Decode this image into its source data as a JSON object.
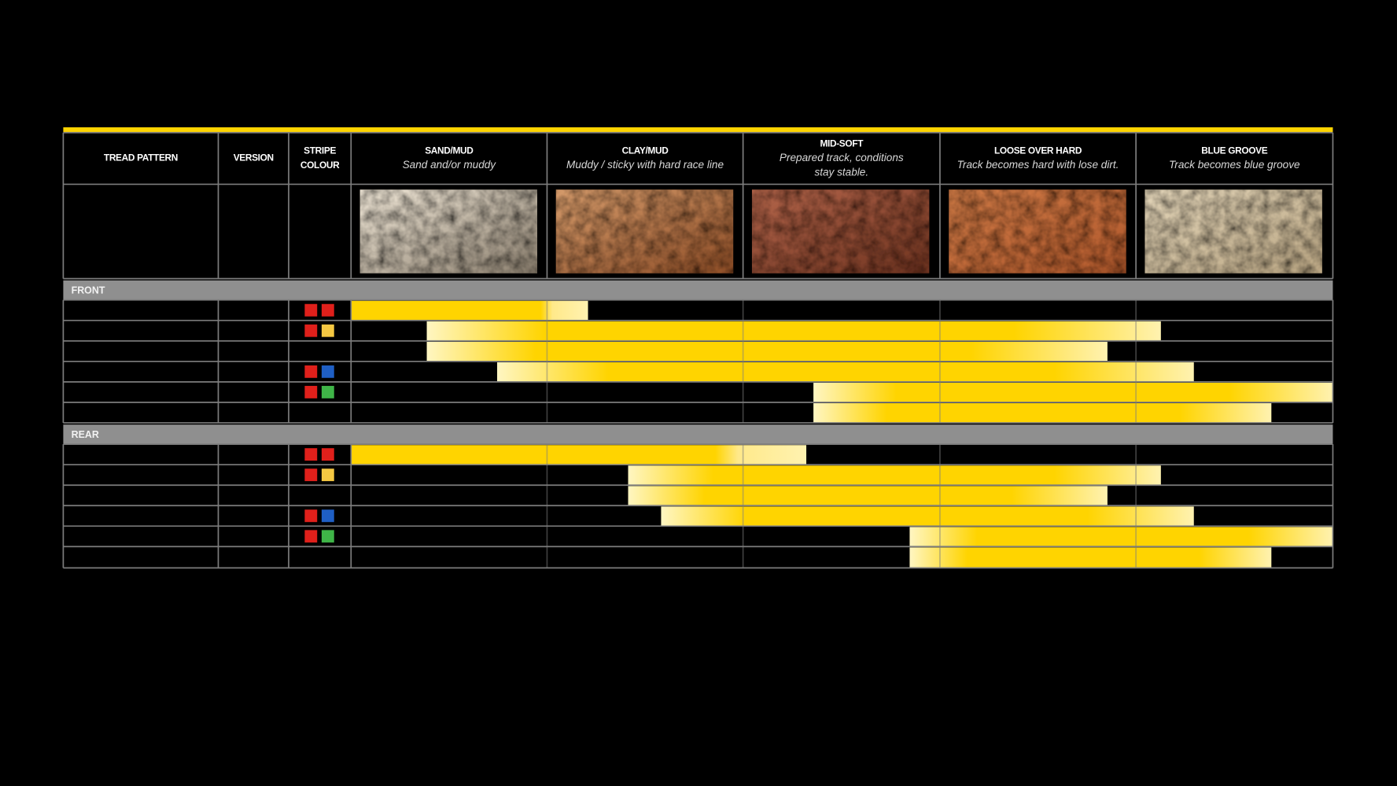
{
  "table": {
    "columns": [
      {
        "title_lines": [
          "TREAD PATTERN"
        ]
      },
      {
        "title_lines": [
          "VERSION"
        ]
      },
      {
        "title_lines": [
          "STRIPE",
          "COLOUR"
        ]
      },
      {
        "title_lines": [
          "SAND/MUD"
        ],
        "subtitle_lines": [
          "Sand and/or muddy"
        ]
      },
      {
        "title_lines": [
          "CLAY/MUD"
        ],
        "subtitle_lines": [
          "Muddy / sticky with hard race line"
        ]
      },
      {
        "title_lines": [
          "MID-SOFT"
        ],
        "subtitle_lines": [
          "Prepared track, conditions",
          "stay stable."
        ]
      },
      {
        "title_lines": [
          "LOOSE OVER HARD"
        ],
        "subtitle_lines": [
          "Track becomes hard with lose dirt."
        ]
      },
      {
        "title_lines": [
          "BLUE GROOVE"
        ],
        "subtitle_lines": [
          "Track becomes blue groove"
        ]
      }
    ],
    "sections": [
      "FRONT",
      "REAR"
    ]
  }
}
